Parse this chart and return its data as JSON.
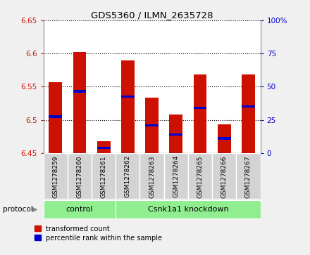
{
  "title": "GDS5360 / ILMN_2635728",
  "samples": [
    "GSM1278259",
    "GSM1278260",
    "GSM1278261",
    "GSM1278262",
    "GSM1278263",
    "GSM1278264",
    "GSM1278265",
    "GSM1278266",
    "GSM1278267"
  ],
  "bar_heights": [
    6.557,
    6.602,
    6.468,
    6.59,
    6.533,
    6.508,
    6.568,
    6.493,
    6.568
  ],
  "bar_bottom": 6.45,
  "blue_values": [
    6.505,
    6.543,
    6.458,
    6.535,
    6.492,
    6.478,
    6.518,
    6.472,
    6.52
  ],
  "bar_color": "#cc1100",
  "blue_color": "#0000cc",
  "ylim_left": [
    6.45,
    6.65
  ],
  "ylim_right": [
    0,
    100
  ],
  "yticks_left": [
    6.45,
    6.5,
    6.55,
    6.6,
    6.65
  ],
  "yticks_right": [
    0,
    25,
    50,
    75,
    100
  ],
  "ylabel_left_color": "#cc1100",
  "ylabel_right_color": "#0000cc",
  "control_label": "control",
  "knockdown_label": "Csnk1a1 knockdown",
  "protocol_label": "protocol",
  "legend_transformed": "transformed count",
  "legend_percentile": "percentile rank within the sample",
  "bg_color": "#f0f0f0",
  "plot_bg": "#ffffff",
  "group_box_color": "#90ee90",
  "sample_box_color": "#d3d3d3"
}
